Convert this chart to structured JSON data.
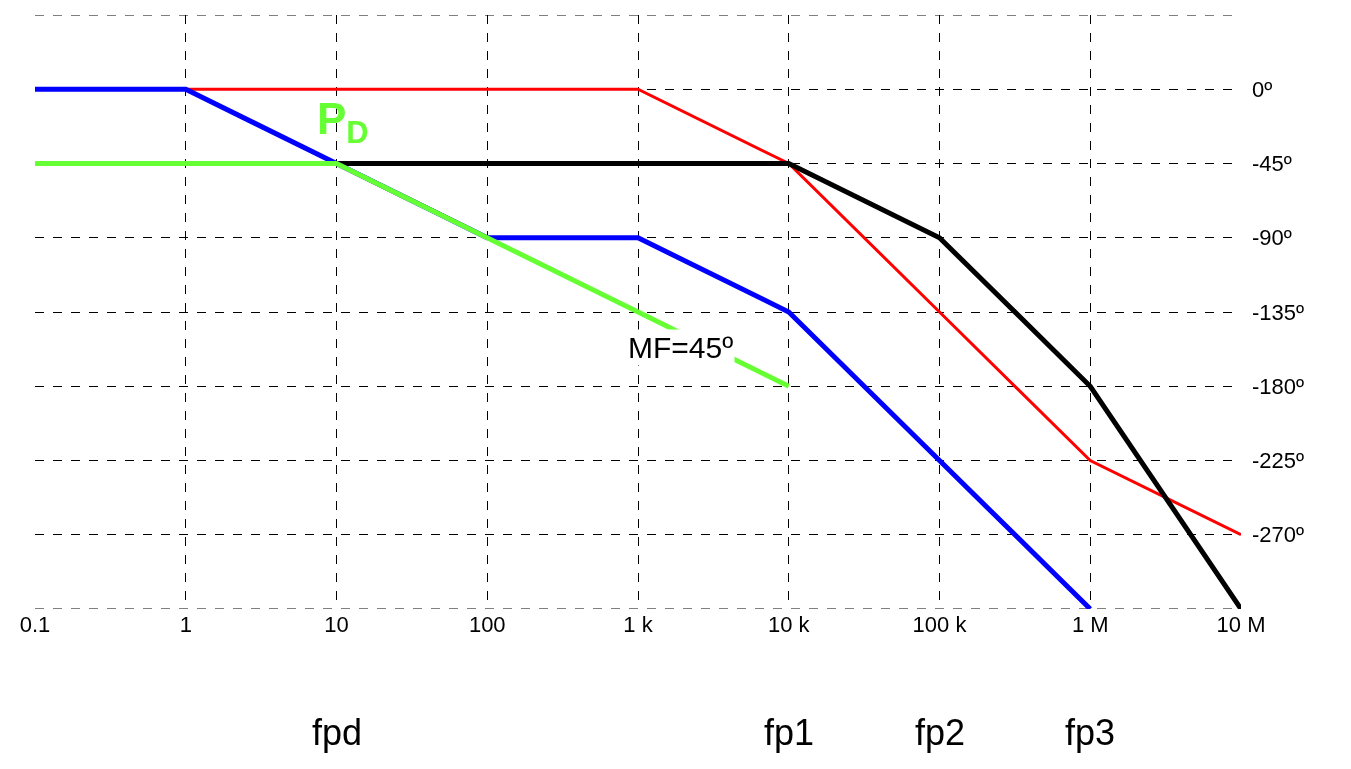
{
  "chart_data": {
    "type": "line",
    "log": "x",
    "xlim": [
      0.1,
      10000000
    ],
    "xticks": [
      0.1,
      1,
      10,
      100,
      {
        "value": 1000,
        "label": "1 k"
      },
      {
        "value": 10000,
        "label": "10 k"
      },
      {
        "value": 100000,
        "label": "100 k"
      },
      {
        "value": 1000000,
        "label": "1 M"
      },
      {
        "value": 10000000,
        "label": "10 M"
      }
    ],
    "ylim": [
      -315,
      45
    ],
    "yticks": [
      {
        "value": 45,
        "label": null
      },
      {
        "value": 0,
        "label": "0º"
      },
      {
        "value": -45,
        "label": "-45º"
      },
      {
        "value": -90,
        "label": "-90º"
      },
      {
        "value": -135,
        "label": "-135º"
      },
      {
        "value": -180,
        "label": "-180º"
      },
      {
        "value": -225,
        "label": "-225º"
      },
      {
        "value": -270,
        "label": "-270º"
      },
      {
        "value": -315,
        "label": null
      }
    ],
    "grid": true,
    "marker": "none",
    "line_style": "solid",
    "series": [
      {
        "color": "#ff0000",
        "x": [
          1,
          1000,
          10000,
          100000,
          1000000,
          10000000
        ],
        "values": [
          0,
          0,
          -45,
          -135,
          -225,
          -270
        ]
      },
      {
        "color": "#000000",
        "x": [
          10,
          10000,
          100000,
          1000000,
          10000000
        ],
        "values": [
          -45,
          -45,
          -90,
          -180,
          -315
        ]
      },
      {
        "color": "#0000ff",
        "x": [
          0.1,
          1,
          10,
          100,
          1000,
          10000,
          100000,
          1000000
        ],
        "values": [
          0,
          0,
          -45,
          -90,
          -90,
          -135,
          -225,
          -315
        ]
      },
      {
        "color": "#66ff33",
        "x": [
          0.1,
          10,
          10000
        ],
        "values": [
          -45,
          -45,
          -180
        ]
      }
    ],
    "annotations": [
      "P$_{D}$",
      "MF=45º",
      "fpd",
      "fp1",
      "fp2",
      "fp3"
    ]
  }
}
